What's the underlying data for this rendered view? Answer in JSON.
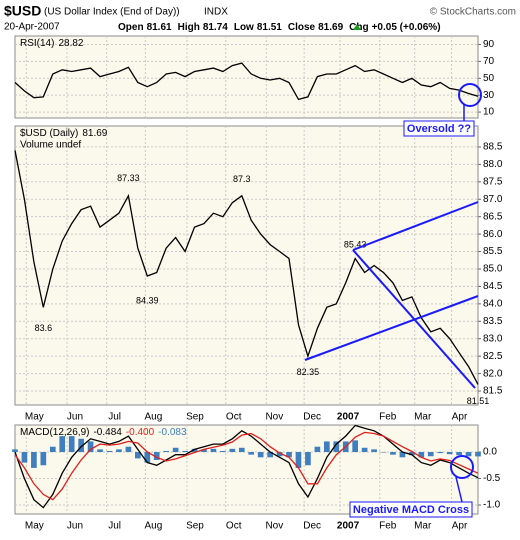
{
  "header": {
    "symbol": "$USD",
    "name": "(US Dollar Index (End of Day))",
    "exchange": "INDX",
    "copyright": "© StockCharts.com",
    "date": "20-Apr-2007",
    "quote": [
      {
        "label": "Open",
        "value": 81.61
      },
      {
        "label": "High",
        "value": 81.74
      },
      {
        "label": "Low",
        "value": 81.51
      },
      {
        "label": "Close",
        "value": 81.69
      },
      {
        "label": "Chg",
        "value": "+0.05 (+0.06%)"
      }
    ]
  },
  "chart_data": [
    {
      "type": "line",
      "label": "RSI(14)",
      "annotation": "Oversold ??",
      "xlim": [
        0,
        49
      ],
      "ylim": [
        3,
        100
      ],
      "yticks": [
        10,
        30,
        50,
        70,
        90
      ],
      "grid": true,
      "series": [
        {
          "name": "RSI(14)",
          "color": "#000000",
          "values": [
            45,
            35,
            27,
            28,
            55,
            60,
            58,
            60,
            62,
            52,
            55,
            58,
            63,
            45,
            40,
            45,
            55,
            57,
            52,
            58,
            60,
            62,
            58,
            65,
            68,
            55,
            50,
            48,
            50,
            45,
            25,
            28,
            52,
            55,
            55,
            60,
            65,
            58,
            60,
            55,
            50,
            45,
            50,
            42,
            40,
            45,
            38,
            36,
            32,
            28.82
          ]
        }
      ]
    },
    {
      "type": "line",
      "label": "$USD (Daily)",
      "sublabel": "Volume undef",
      "xlim": [
        0,
        49
      ],
      "ylim": [
        81.1,
        89.1
      ],
      "yticks": [
        81.5,
        {
          "value": 82,
          "label": "82.0"
        },
        82.5,
        {
          "value": 83,
          "label": "83.0"
        },
        83.5,
        {
          "value": 84,
          "label": "84.0"
        },
        84.5,
        {
          "value": 85,
          "label": "85.0"
        },
        85.5,
        {
          "value": 86,
          "label": "86.0"
        },
        86.5,
        {
          "value": 87,
          "label": "87.0"
        },
        87.5,
        {
          "value": 88,
          "label": "88.0"
        },
        88.5
      ],
      "xticks": [
        {
          "value": 1.2,
          "label": "May"
        },
        {
          "value": 5.5,
          "label": "Jun"
        },
        {
          "value": 9.7,
          "label": "Jul"
        },
        {
          "value": 13.8,
          "label": "Aug"
        },
        {
          "value": 18.2,
          "label": "Sep"
        },
        {
          "value": 22.3,
          "label": "Oct"
        },
        {
          "value": 26.6,
          "label": "Nov"
        },
        {
          "value": 30.6,
          "label": "Dec"
        },
        {
          "value": 34.4,
          "label": "2007"
        },
        {
          "value": 38.6,
          "label": "Feb"
        },
        {
          "value": 42.3,
          "label": "Mar"
        },
        {
          "value": 46.2,
          "label": "Apr"
        }
      ],
      "grid": true,
      "series": [
        {
          "name": "$USD",
          "color": "#000000",
          "values": [
            88.4,
            87.0,
            85.2,
            83.9,
            85.0,
            85.8,
            86.3,
            86.7,
            86.8,
            86.2,
            86.4,
            86.6,
            87.1,
            85.6,
            84.8,
            84.9,
            85.6,
            85.9,
            85.5,
            86.2,
            86.3,
            86.6,
            86.5,
            86.9,
            87.1,
            86.4,
            86.0,
            85.7,
            85.5,
            85.3,
            83.4,
            82.5,
            83.3,
            83.9,
            84.0,
            84.6,
            85.3,
            84.9,
            85.1,
            84.9,
            84.6,
            84.1,
            84.2,
            83.6,
            83.2,
            83.3,
            83.0,
            82.6,
            82.2,
            81.69
          ]
        }
      ],
      "point_labels": [
        {
          "x": 3,
          "value": 83.6
        },
        {
          "x": 12,
          "value": 87.33
        },
        {
          "x": 14,
          "value": 84.39
        },
        {
          "x": 24,
          "value": 87.3
        },
        {
          "x": 31,
          "value": 82.35
        },
        {
          "x": 36,
          "value": 85.43
        },
        {
          "x": 49,
          "value": 81.51
        }
      ]
    },
    {
      "type": "line",
      "label": "MACD(12,26,9)",
      "header_values": [
        "-0.484",
        "-0.400",
        "-0.083"
      ],
      "annotation": "Negative MACD Cross",
      "xlim": [
        0,
        49
      ],
      "ylim": [
        -1.17,
        0.51
      ],
      "yticks": [
        {
          "value": 0,
          "label": "0.0"
        },
        -0.5,
        {
          "value": -1,
          "label": "-1.0"
        }
      ],
      "xticks": [
        {
          "value": 1.2,
          "label": "May"
        },
        {
          "value": 5.5,
          "label": "Jun"
        },
        {
          "value": 9.7,
          "label": "Jul"
        },
        {
          "value": 13.8,
          "label": "Aug"
        },
        {
          "value": 18.2,
          "label": "Sep"
        },
        {
          "value": 22.3,
          "label": "Oct"
        },
        {
          "value": 26.6,
          "label": "Nov"
        },
        {
          "value": 30.6,
          "label": "Dec"
        },
        {
          "value": 34.4,
          "label": "2007"
        },
        {
          "value": 38.6,
          "label": "Feb"
        },
        {
          "value": 42.3,
          "label": "Mar"
        },
        {
          "value": 46.2,
          "label": "Apr"
        }
      ],
      "grid": true,
      "series": [
        {
          "name": "Histogram",
          "style": "bar",
          "color": "#3f7fbf",
          "values": [
            0.05,
            -0.2,
            -0.3,
            -0.25,
            0.1,
            0.3,
            0.3,
            0.25,
            0.2,
            0.05,
            0.02,
            0.05,
            0.1,
            -0.12,
            -0.2,
            -0.15,
            0.02,
            0.08,
            0.02,
            0.06,
            0.05,
            0.06,
            0.02,
            0.06,
            0.08,
            -0.05,
            -0.1,
            -0.1,
            -0.08,
            -0.1,
            -0.3,
            -0.25,
            0.1,
            0.2,
            0.2,
            0.2,
            0.22,
            0.08,
            0.05,
            0.0,
            -0.05,
            -0.1,
            -0.06,
            -0.1,
            -0.08,
            -0.02,
            -0.04,
            -0.06,
            -0.08,
            -0.083
          ]
        },
        {
          "name": "MACD",
          "color": "#000000",
          "values": [
            0.0,
            -0.5,
            -0.9,
            -1.05,
            -0.8,
            -0.4,
            -0.1,
            0.1,
            0.25,
            0.2,
            0.15,
            0.2,
            0.3,
            0.05,
            -0.2,
            -0.25,
            -0.15,
            -0.05,
            -0.05,
            0.05,
            0.1,
            0.15,
            0.15,
            0.25,
            0.4,
            0.3,
            0.15,
            0.0,
            -0.1,
            -0.2,
            -0.6,
            -0.85,
            -0.5,
            -0.1,
            0.15,
            0.3,
            0.5,
            0.45,
            0.4,
            0.3,
            0.15,
            0.0,
            -0.05,
            -0.2,
            -0.25,
            -0.15,
            -0.2,
            -0.3,
            -0.4,
            -0.484
          ]
        },
        {
          "name": "Signal",
          "color": "#e0201a",
          "values": [
            -0.05,
            -0.3,
            -0.6,
            -0.8,
            -0.9,
            -0.7,
            -0.4,
            -0.15,
            0.05,
            0.15,
            0.13,
            0.15,
            0.2,
            0.17,
            0.0,
            -0.1,
            -0.17,
            -0.13,
            -0.07,
            -0.01,
            0.05,
            0.09,
            0.13,
            0.19,
            0.32,
            0.35,
            0.25,
            0.1,
            -0.02,
            -0.1,
            -0.3,
            -0.6,
            -0.6,
            -0.3,
            -0.05,
            0.1,
            0.28,
            0.37,
            0.35,
            0.3,
            0.2,
            0.1,
            0.01,
            -0.1,
            -0.17,
            -0.13,
            -0.16,
            -0.24,
            -0.32,
            -0.4
          ]
        }
      ]
    }
  ]
}
